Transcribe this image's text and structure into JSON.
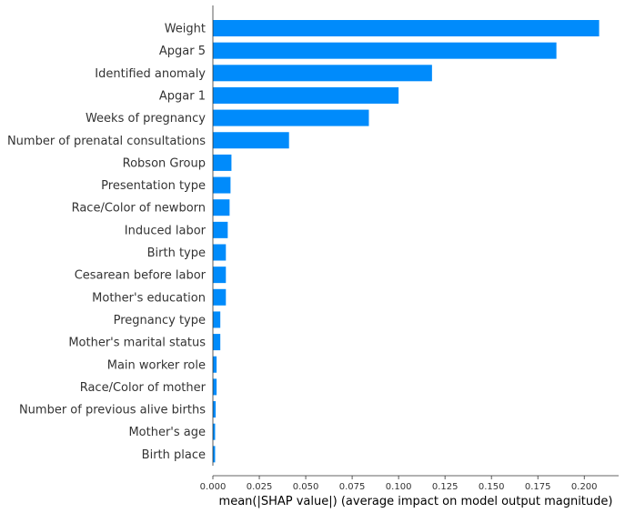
{
  "chart_data": {
    "type": "bar",
    "orientation": "horizontal",
    "bar_color": "#1e88e5",
    "bar_color_hex": "#008bfb",
    "categories": [
      "Weight",
      "Apgar 5",
      "Identified anomaly",
      "Apgar 1",
      "Weeks of pregnancy",
      "Number of prenatal consultations",
      "Robson Group",
      "Presentation type",
      "Race/Color of newborn",
      "Induced labor",
      "Birth type",
      "Cesarean before labor",
      "Mother's education",
      "Pregnancy type",
      "Mother's marital status",
      "Main worker role",
      "Race/Color of mother",
      "Number of previous alive births",
      "Mother's age",
      "Birth place"
    ],
    "values": [
      0.208,
      0.185,
      0.118,
      0.1,
      0.084,
      0.041,
      0.01,
      0.0095,
      0.009,
      0.008,
      0.007,
      0.007,
      0.007,
      0.004,
      0.004,
      0.002,
      0.002,
      0.0015,
      0.0012,
      0.0012
    ],
    "xlim": [
      0,
      0.2185
    ],
    "x_ticks": [
      "0.000",
      "0.025",
      "0.050",
      "0.075",
      "0.100",
      "0.125",
      "0.150",
      "0.175",
      "0.200"
    ],
    "x_tick_values": [
      0,
      0.025,
      0.05,
      0.075,
      0.1,
      0.125,
      0.15,
      0.175,
      0.2
    ],
    "xlabel": "mean(|SHAP value|) (average impact on model output magnitude)",
    "ylabel": "",
    "title": "",
    "grid": false
  }
}
